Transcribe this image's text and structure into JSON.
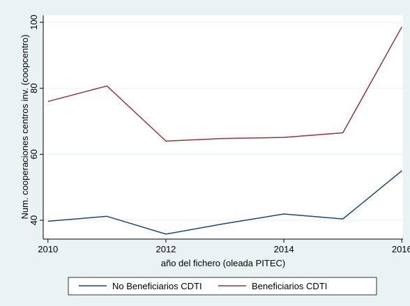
{
  "chart_data": {
    "type": "line",
    "x_label": "año del fichero (oleada PITEC)",
    "y_label": "Num. cooperaciones centros inv. (coopcentro)",
    "x": [
      2010,
      2011,
      2012,
      2013,
      2014,
      2015,
      2016
    ],
    "series": [
      {
        "name": "No Beneficiarios CDTI",
        "color": "#1a476f",
        "values": [
          39.7,
          41.2,
          35.8,
          39.0,
          41.9,
          40.4,
          55.0
        ]
      },
      {
        "name": "Beneficiarios CDTI",
        "color": "#90353b",
        "values": [
          76.0,
          80.7,
          64.0,
          64.8,
          65.1,
          66.5,
          98.6
        ]
      }
    ],
    "xlim": [
      2009.92,
      2016.02
    ],
    "xticks": [
      2010,
      2012,
      2014,
      2016
    ],
    "ylim": [
      34.3,
      102.1
    ],
    "yticks": [
      40,
      60,
      80,
      100
    ],
    "grid": true
  }
}
